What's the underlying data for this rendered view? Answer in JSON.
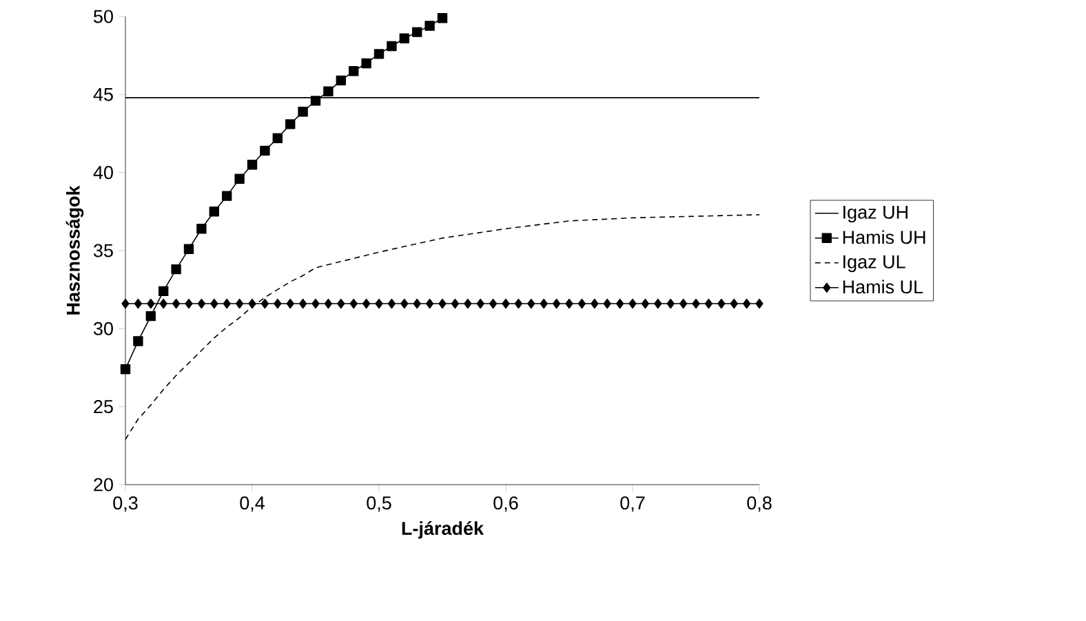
{
  "chart_data": {
    "type": "line",
    "xlabel": "L-járadék",
    "ylabel": "Hasznosságok",
    "xlim": [
      0.3,
      0.8
    ],
    "ylim": [
      20,
      50
    ],
    "xticks": [
      {
        "value": 0.3,
        "label": "0,3"
      },
      {
        "value": 0.4,
        "label": "0,4"
      },
      {
        "value": 0.5,
        "label": "0,5"
      },
      {
        "value": 0.6,
        "label": "0,6"
      },
      {
        "value": 0.7,
        "label": "0,7"
      },
      {
        "value": 0.8,
        "label": "0,8"
      }
    ],
    "yticks": [
      20,
      25,
      30,
      35,
      40,
      45,
      50
    ],
    "legend": "right",
    "series": [
      {
        "name": "Igaz UH",
        "color": "#000000",
        "line_style": "solid",
        "marker": "none",
        "x": [
          0.3,
          0.8
        ],
        "values": [
          44.8,
          44.8
        ]
      },
      {
        "name": "Hamis UH",
        "color": "#000000",
        "line_style": "solid",
        "marker": "square",
        "x": [
          0.3,
          0.31,
          0.32,
          0.33,
          0.34,
          0.35,
          0.36,
          0.37,
          0.38,
          0.39,
          0.4,
          0.41,
          0.42,
          0.43,
          0.44,
          0.45,
          0.46,
          0.47,
          0.48,
          0.49,
          0.5,
          0.51,
          0.52,
          0.53,
          0.54,
          0.55
        ],
        "values": [
          27.4,
          29.2,
          30.8,
          32.4,
          33.8,
          35.1,
          36.4,
          37.5,
          38.5,
          39.6,
          40.5,
          41.4,
          42.2,
          43.1,
          43.9,
          44.6,
          45.2,
          45.9,
          46.5,
          47.0,
          47.6,
          48.1,
          48.6,
          49.0,
          49.4,
          49.9
        ]
      },
      {
        "name": "Igaz UL",
        "color": "#000000",
        "line_style": "dashed",
        "marker": "none",
        "x": [
          0.3,
          0.31,
          0.32,
          0.33,
          0.34,
          0.35,
          0.36,
          0.37,
          0.38,
          0.39,
          0.4,
          0.41,
          0.42,
          0.43,
          0.44,
          0.45,
          0.5,
          0.55,
          0.6,
          0.65,
          0.7,
          0.75,
          0.8
        ],
        "values": [
          22.9,
          24.2,
          25.1,
          26.1,
          27.0,
          27.8,
          28.6,
          29.4,
          30.1,
          30.7,
          31.4,
          32.0,
          32.5,
          33.0,
          33.4,
          33.9,
          34.9,
          35.8,
          36.4,
          36.9,
          37.1,
          37.2,
          37.3
        ]
      },
      {
        "name": "Hamis UL",
        "color": "#000000",
        "line_style": "solid",
        "marker": "diamond",
        "x": [
          0.3,
          0.31,
          0.32,
          0.33,
          0.34,
          0.35,
          0.36,
          0.37,
          0.38,
          0.39,
          0.4,
          0.41,
          0.42,
          0.43,
          0.44,
          0.45,
          0.46,
          0.47,
          0.48,
          0.49,
          0.5,
          0.51,
          0.52,
          0.53,
          0.54,
          0.55,
          0.56,
          0.57,
          0.58,
          0.59,
          0.6,
          0.61,
          0.62,
          0.63,
          0.64,
          0.65,
          0.66,
          0.67,
          0.68,
          0.69,
          0.7,
          0.71,
          0.72,
          0.73,
          0.74,
          0.75,
          0.76,
          0.77,
          0.78,
          0.79,
          0.8
        ],
        "values": [
          31.6,
          31.6,
          31.6,
          31.6,
          31.6,
          31.6,
          31.6,
          31.6,
          31.6,
          31.6,
          31.6,
          31.6,
          31.6,
          31.6,
          31.6,
          31.6,
          31.6,
          31.6,
          31.6,
          31.6,
          31.6,
          31.6,
          31.6,
          31.6,
          31.6,
          31.6,
          31.6,
          31.6,
          31.6,
          31.6,
          31.6,
          31.6,
          31.6,
          31.6,
          31.6,
          31.6,
          31.6,
          31.6,
          31.6,
          31.6,
          31.6,
          31.6,
          31.6,
          31.6,
          31.6,
          31.6,
          31.6,
          31.6,
          31.6,
          31.6,
          31.6
        ]
      }
    ]
  }
}
